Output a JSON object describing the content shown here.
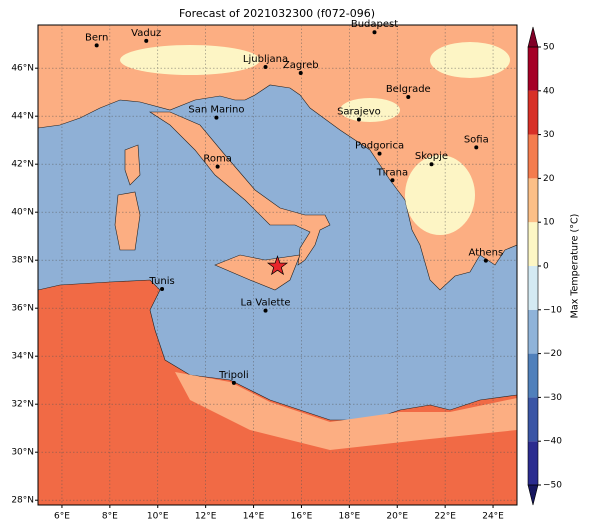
{
  "title": "Forecast of 2021032300 (f072-096)",
  "map": {
    "xlim": [
      5,
      25
    ],
    "ylim": [
      27.8,
      47.8
    ],
    "xticks": [
      {
        "value": 6,
        "label": "6°E"
      },
      {
        "value": 8,
        "label": "8°E"
      },
      {
        "value": 10,
        "label": "10°E"
      },
      {
        "value": 12,
        "label": "12°E"
      },
      {
        "value": 14,
        "label": "14°E"
      },
      {
        "value": 16,
        "label": "16°E"
      },
      {
        "value": 18,
        "label": "18°E"
      },
      {
        "value": 20,
        "label": "20°E"
      },
      {
        "value": 22,
        "label": "22°E"
      },
      {
        "value": 24,
        "label": "24°E"
      }
    ],
    "yticks": [
      {
        "value": 28,
        "label": "28°N"
      },
      {
        "value": 30,
        "label": "30°N"
      },
      {
        "value": 32,
        "label": "32°N"
      },
      {
        "value": 34,
        "label": "34°N"
      },
      {
        "value": 36,
        "label": "36°N"
      },
      {
        "value": 38,
        "label": "38°N"
      },
      {
        "value": 40,
        "label": "40°N"
      },
      {
        "value": 42,
        "label": "42°N"
      },
      {
        "value": 44,
        "label": "44°N"
      },
      {
        "value": 46,
        "label": "46°N"
      }
    ],
    "grid": true,
    "cities": [
      {
        "name": "Bern",
        "lon": 7.45,
        "lat": 46.95
      },
      {
        "name": "Vaduz",
        "lon": 9.52,
        "lat": 47.14
      },
      {
        "name": "Budapest",
        "lon": 19.05,
        "lat": 47.5
      },
      {
        "name": "Ljubljana",
        "lon": 14.5,
        "lat": 46.05
      },
      {
        "name": "Zagreb",
        "lon": 15.97,
        "lat": 45.8
      },
      {
        "name": "Belgrade",
        "lon": 20.46,
        "lat": 44.8
      },
      {
        "name": "San Marino",
        "lon": 12.45,
        "lat": 43.94
      },
      {
        "name": "Sarajevo",
        "lon": 18.4,
        "lat": 43.86
      },
      {
        "name": "Sofia",
        "lon": 23.3,
        "lat": 42.7
      },
      {
        "name": "Roma",
        "lon": 12.5,
        "lat": 41.9
      },
      {
        "name": "Podgorica",
        "lon": 19.26,
        "lat": 42.44
      },
      {
        "name": "Skopje",
        "lon": 21.43,
        "lat": 42.0
      },
      {
        "name": "Tirana",
        "lon": 19.8,
        "lat": 41.33
      },
      {
        "name": "Athens",
        "lon": 23.7,
        "lat": 37.98
      },
      {
        "name": "Tunis",
        "lon": 10.18,
        "lat": 36.8
      },
      {
        "name": "La Valette",
        "lon": 14.5,
        "lat": 35.9
      },
      {
        "name": "Tripoli",
        "lon": 13.18,
        "lat": 32.89
      }
    ],
    "marker": {
      "lon": 15.0,
      "lat": 37.75,
      "color": "#e8262b"
    }
  },
  "colorbar": {
    "label": "Max Temperature (°C)",
    "clim": [
      -50,
      50
    ],
    "ticks": [
      {
        "value": -50,
        "label": "−50"
      },
      {
        "value": -40,
        "label": "−40"
      },
      {
        "value": -30,
        "label": "−30"
      },
      {
        "value": -20,
        "label": "−20"
      },
      {
        "value": -10,
        "label": "−10"
      },
      0,
      10,
      20,
      30,
      40,
      50
    ],
    "colors": [
      "#2b2c8f",
      "#3a55a5",
      "#5080bb",
      "#8fb3d9",
      "#d4eaf3",
      "#fdf7c5",
      "#fcbf87",
      "#f47c4e",
      "#d73027",
      "#a50026"
    ],
    "under": "#17175f",
    "over": "#800026"
  }
}
